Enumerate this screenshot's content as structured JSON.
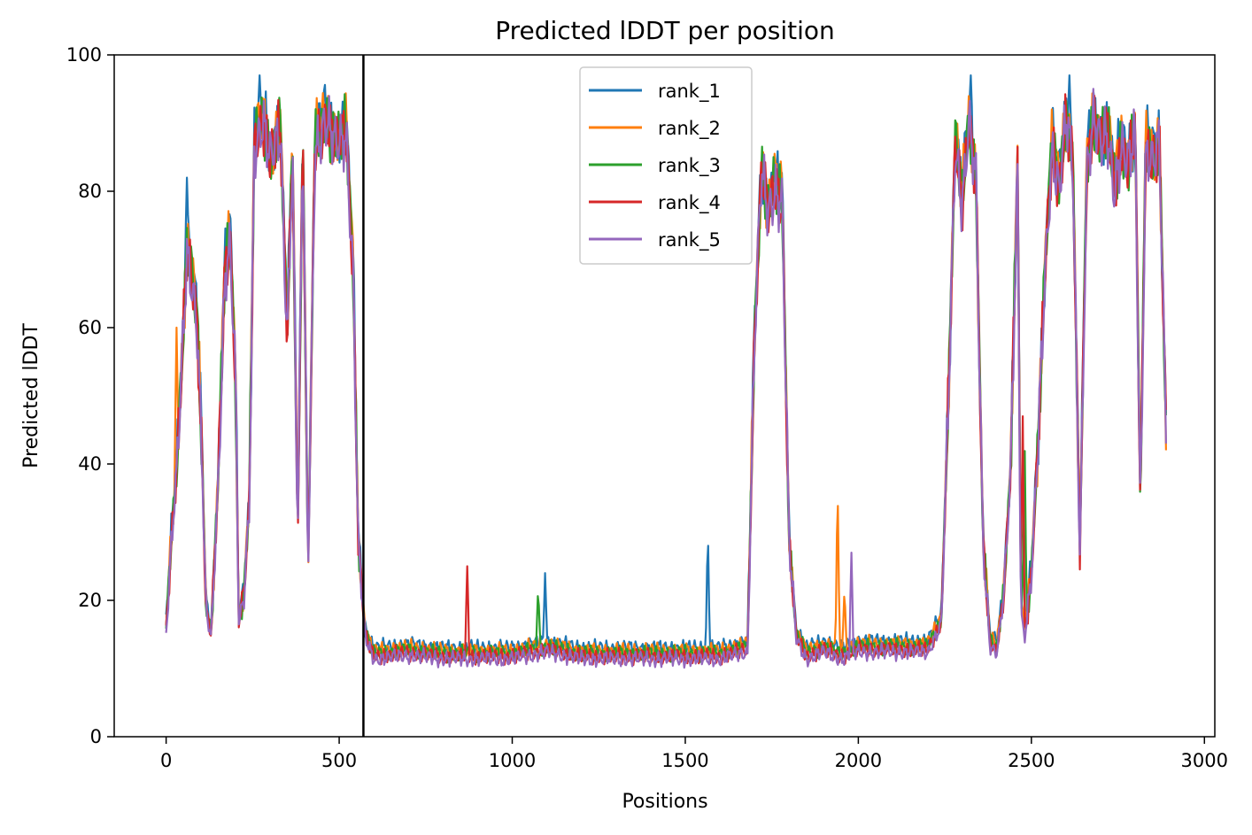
{
  "chart_data": {
    "type": "line",
    "title": "Predicted lDDT per position",
    "xlabel": "Positions",
    "ylabel": "Predicted lDDT",
    "xlim": [
      -150,
      3030
    ],
    "ylim": [
      0,
      100
    ],
    "xticks": [
      0,
      500,
      1000,
      1500,
      2000,
      2500,
      3000
    ],
    "yticks": [
      0,
      20,
      40,
      60,
      80,
      100
    ],
    "grid": false,
    "legend_position": "upper-center",
    "vertical_line": {
      "x": 570,
      "color": "#000000"
    },
    "series": [
      {
        "name": "rank_1",
        "color": "#1f77b4"
      },
      {
        "name": "rank_2",
        "color": "#ff7f0e"
      },
      {
        "name": "rank_3",
        "color": "#2ca02c"
      },
      {
        "name": "rank_4",
        "color": "#d62728"
      },
      {
        "name": "rank_5",
        "color": "#9467bd"
      }
    ],
    "profile": [
      [
        0,
        17
      ],
      [
        15,
        30
      ],
      [
        30,
        40
      ],
      [
        45,
        55
      ],
      [
        60,
        72
      ],
      [
        75,
        68
      ],
      [
        90,
        62
      ],
      [
        105,
        40
      ],
      [
        115,
        20
      ],
      [
        130,
        16
      ],
      [
        150,
        38
      ],
      [
        170,
        70
      ],
      [
        185,
        74
      ],
      [
        200,
        55
      ],
      [
        210,
        18
      ],
      [
        225,
        22
      ],
      [
        240,
        35
      ],
      [
        255,
        88
      ],
      [
        280,
        92
      ],
      [
        300,
        86
      ],
      [
        330,
        90
      ],
      [
        350,
        60
      ],
      [
        365,
        88
      ],
      [
        380,
        30
      ],
      [
        395,
        90
      ],
      [
        410,
        25
      ],
      [
        430,
        88
      ],
      [
        460,
        92
      ],
      [
        490,
        88
      ],
      [
        520,
        90
      ],
      [
        540,
        70
      ],
      [
        555,
        30
      ],
      [
        575,
        16
      ],
      [
        600,
        13
      ],
      [
        700,
        13.5
      ],
      [
        800,
        13
      ],
      [
        900,
        13
      ],
      [
        1000,
        13
      ],
      [
        1100,
        14
      ],
      [
        1200,
        13
      ],
      [
        1300,
        13
      ],
      [
        1400,
        13
      ],
      [
        1500,
        13
      ],
      [
        1600,
        13
      ],
      [
        1680,
        14
      ],
      [
        1700,
        60
      ],
      [
        1720,
        84
      ],
      [
        1740,
        78
      ],
      [
        1760,
        82
      ],
      [
        1780,
        80
      ],
      [
        1800,
        30
      ],
      [
        1820,
        16
      ],
      [
        1850,
        13
      ],
      [
        1900,
        14
      ],
      [
        1950,
        13
      ],
      [
        2000,
        14
      ],
      [
        2100,
        14
      ],
      [
        2200,
        14
      ],
      [
        2240,
        18
      ],
      [
        2260,
        50
      ],
      [
        2280,
        88
      ],
      [
        2300,
        80
      ],
      [
        2320,
        92
      ],
      [
        2340,
        82
      ],
      [
        2360,
        30
      ],
      [
        2380,
        15
      ],
      [
        2400,
        14
      ],
      [
        2420,
        22
      ],
      [
        2440,
        40
      ],
      [
        2460,
        85
      ],
      [
        2470,
        20
      ],
      [
        2480,
        16
      ],
      [
        2500,
        25
      ],
      [
        2520,
        45
      ],
      [
        2540,
        70
      ],
      [
        2560,
        88
      ],
      [
        2580,
        82
      ],
      [
        2600,
        92
      ],
      [
        2620,
        85
      ],
      [
        2640,
        28
      ],
      [
        2660,
        85
      ],
      [
        2680,
        92
      ],
      [
        2700,
        88
      ],
      [
        2720,
        90
      ],
      [
        2740,
        82
      ],
      [
        2760,
        88
      ],
      [
        2780,
        85
      ],
      [
        2800,
        90
      ],
      [
        2815,
        34
      ],
      [
        2830,
        88
      ],
      [
        2850,
        86
      ],
      [
        2870,
        88
      ],
      [
        2890,
        44
      ]
    ],
    "spikes": [
      {
        "series": "rank_4",
        "x": 870,
        "y": 25
      },
      {
        "series": "rank_2",
        "x": 1940,
        "y": 38
      },
      {
        "series": "rank_1",
        "x": 1565,
        "y": 31
      },
      {
        "series": "rank_1",
        "x": 1095,
        "y": 24
      },
      {
        "series": "rank_3",
        "x": 1075,
        "y": 22
      },
      {
        "series": "rank_4",
        "x": 2475,
        "y": 47
      },
      {
        "series": "rank_3",
        "x": 2480,
        "y": 47
      },
      {
        "series": "rank_2",
        "x": 30,
        "y": 60
      },
      {
        "series": "rank_1",
        "x": 60,
        "y": 82
      },
      {
        "series": "rank_1",
        "x": 270,
        "y": 97
      },
      {
        "series": "rank_1",
        "x": 2325,
        "y": 97
      },
      {
        "series": "rank_1",
        "x": 2610,
        "y": 97
      },
      {
        "series": "rank_5",
        "x": 1980,
        "y": 27
      },
      {
        "series": "rank_2",
        "x": 1960,
        "y": 22
      }
    ]
  }
}
